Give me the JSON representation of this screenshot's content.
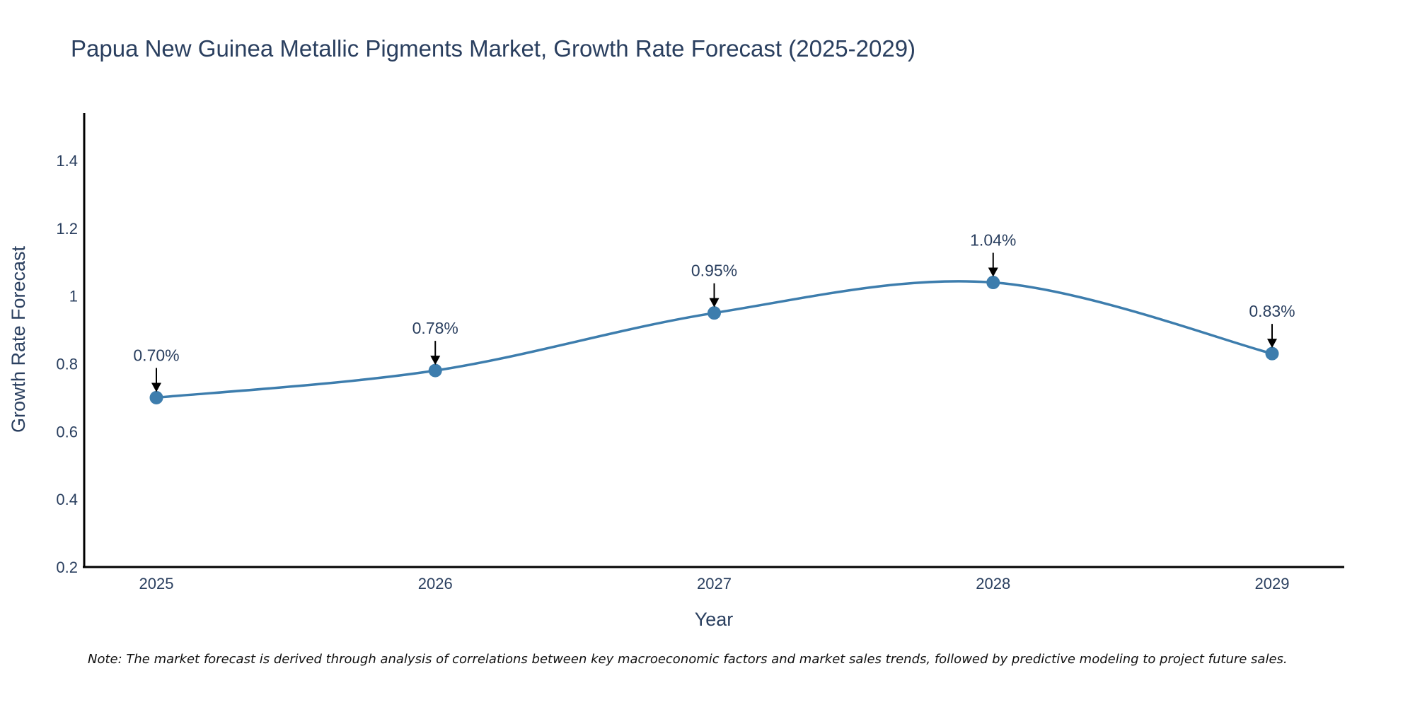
{
  "chart_data": {
    "type": "line",
    "title": "Papua New Guinea Metallic Pigments Market, Growth Rate Forecast (2025-2029)",
    "xlabel": "Year",
    "ylabel": "Growth Rate Forecast",
    "categories": [
      "2025",
      "2026",
      "2027",
      "2028",
      "2029"
    ],
    "series": [
      {
        "name": "Growth Rate Forecast",
        "values": [
          0.7,
          0.78,
          0.95,
          1.04,
          0.83
        ],
        "color": "#3d7dad"
      }
    ],
    "data_labels": [
      "0.70%",
      "0.78%",
      "0.95%",
      "1.04%",
      "0.83%"
    ],
    "ylim": [
      0.2,
      1.54
    ],
    "y_ticks": [
      0.2,
      0.4,
      0.6,
      0.8,
      1,
      1.2,
      1.4
    ],
    "y_tick_labels": [
      "0.2",
      "0.4",
      "0.6",
      "0.8",
      "1",
      "1.2",
      "1.4"
    ],
    "grid": false,
    "line_shape": "spline",
    "note": "Note: The market forecast is derived through analysis of correlations between key macroeconomic factors and market sales trends, followed by predictive modeling to project future sales."
  }
}
